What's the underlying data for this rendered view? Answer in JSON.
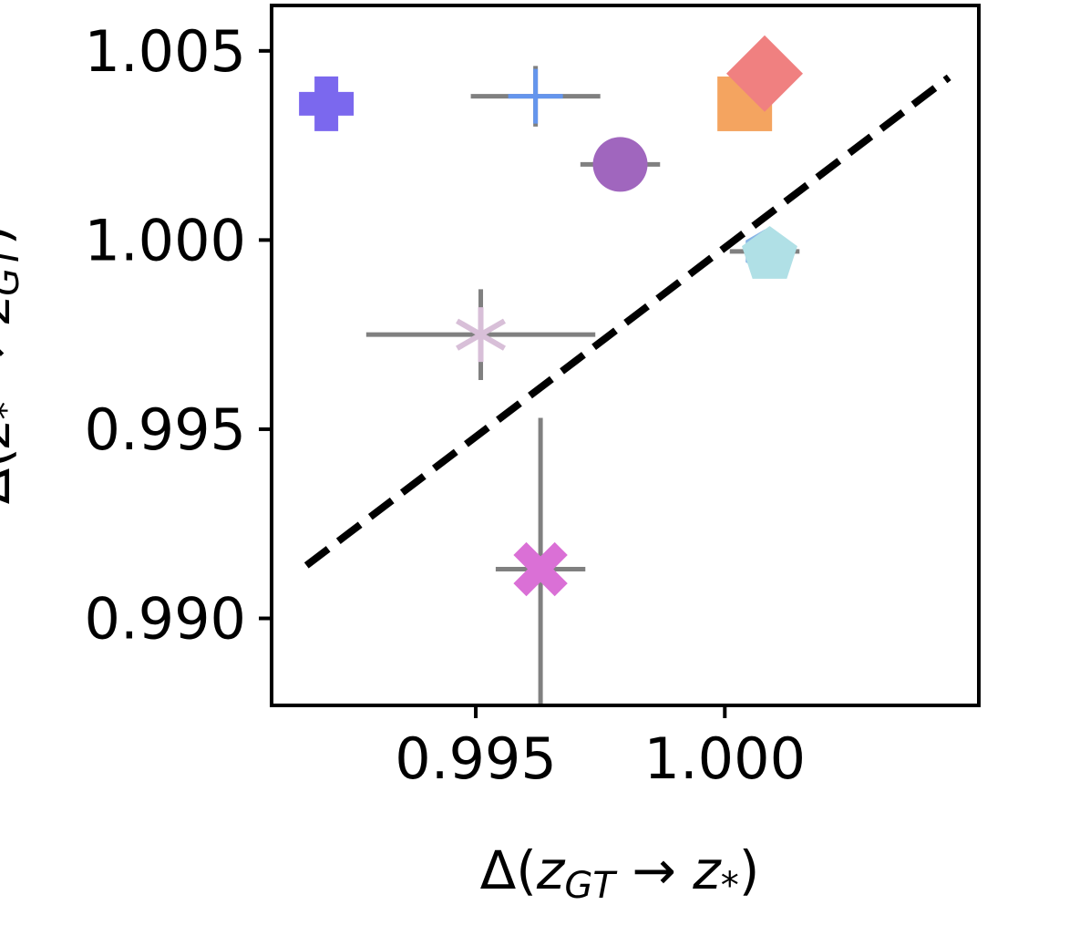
{
  "chart_data": {
    "type": "scatter",
    "title": "",
    "xlabel": {
      "prefix": "Δ(",
      "main": "z",
      "sub": "GT",
      "arrow": " → ",
      "main2": "z",
      "sub2": "*",
      "suffix": ")"
    },
    "ylabel": {
      "prefix": "Δ(",
      "main": "z",
      "sub": "*",
      "arrow": " → ",
      "main2": "z",
      "sub2": "GT",
      "suffix": ")"
    },
    "xlim": [
      0.9909,
      1.0051
    ],
    "ylim": [
      0.9877,
      1.0062
    ],
    "x_ticks": [
      0.995,
      1.0
    ],
    "x_tick_labels": [
      "0.995",
      "1.000"
    ],
    "y_ticks": [
      0.99,
      0.995,
      1.0,
      1.005
    ],
    "y_tick_labels": [
      "0.990",
      "0.995",
      "1.000",
      "1.005"
    ],
    "grid": false,
    "legend": "none",
    "reference_line": {
      "style": "dashed",
      "color": "#000000",
      "x": [
        0.9916,
        1.0045
      ],
      "y": [
        0.9914,
        1.0043
      ]
    },
    "errorbar_color": "#808080",
    "points": [
      {
        "x": 0.992,
        "y": 1.0036,
        "xerr": 0,
        "yerr": 0,
        "marker": "plus-filled",
        "color": "#7B68EE"
      },
      {
        "x": 0.9962,
        "y": 1.0038,
        "xerr": 0.0013,
        "yerr": 0.0008,
        "marker": "plus",
        "color": "#6495ED"
      },
      {
        "x": 0.9979,
        "y": 1.002,
        "xerr": 0.0008,
        "yerr": 0.0,
        "marker": "circle",
        "color": "#A066BE"
      },
      {
        "x": 1.0004,
        "y": 1.0036,
        "xerr": 0,
        "yerr": 0,
        "marker": "square",
        "color": "#F4A460"
      },
      {
        "x": 1.0008,
        "y": 1.0044,
        "xerr": 0,
        "yerr": 0,
        "marker": "diamond",
        "color": "#F08080"
      },
      {
        "x": 1.0008,
        "y": 0.9997,
        "xerr": 0.0007,
        "yerr": 0.0001,
        "marker": "hexagon",
        "color": "#87B4E6"
      },
      {
        "x": 1.0009,
        "y": 0.9996,
        "xerr": 0,
        "yerr": 0,
        "marker": "pentagon",
        "color": "#B0E0E6"
      },
      {
        "x": 0.9951,
        "y": 0.9975,
        "xerr": 0.0023,
        "yerr": 0.0012,
        "marker": "star",
        "color": "#D8BFD8"
      },
      {
        "x": 0.9963,
        "y": 0.9913,
        "xerr": 0.0009,
        "yerr": 0.004,
        "marker": "x-filled",
        "color": "#DA70D6"
      }
    ]
  }
}
